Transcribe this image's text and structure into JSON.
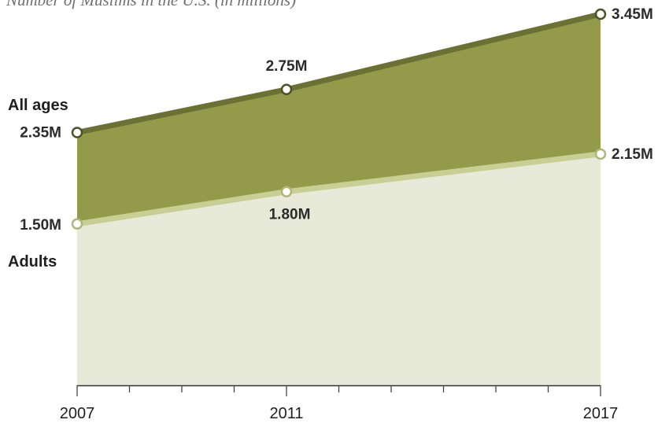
{
  "chart_data": {
    "type": "area",
    "title": "",
    "subtitle": "Number of Muslims in the U.S. (in millions)",
    "xlabel": "",
    "ylabel": "",
    "x": [
      2007,
      2011,
      2017
    ],
    "x_tick_labels": [
      "2007",
      "2011",
      "2017"
    ],
    "xlim": [
      2007,
      2017
    ],
    "ylim": [
      0,
      3.45
    ],
    "grid": false,
    "series": [
      {
        "name": "All ages",
        "values": [
          2.35,
          2.75,
          3.45
        ],
        "value_labels": [
          "2.35M",
          "2.75M",
          "3.45M"
        ],
        "fill_color": "#939a4a",
        "line_color": "#6b7133"
      },
      {
        "name": "Adults",
        "values": [
          1.5,
          1.8,
          2.15
        ],
        "value_labels": [
          "1.50M",
          "1.80M",
          "2.15M"
        ],
        "fill_color": "#e8ead9",
        "line_color": "#c7cf95"
      }
    ]
  }
}
